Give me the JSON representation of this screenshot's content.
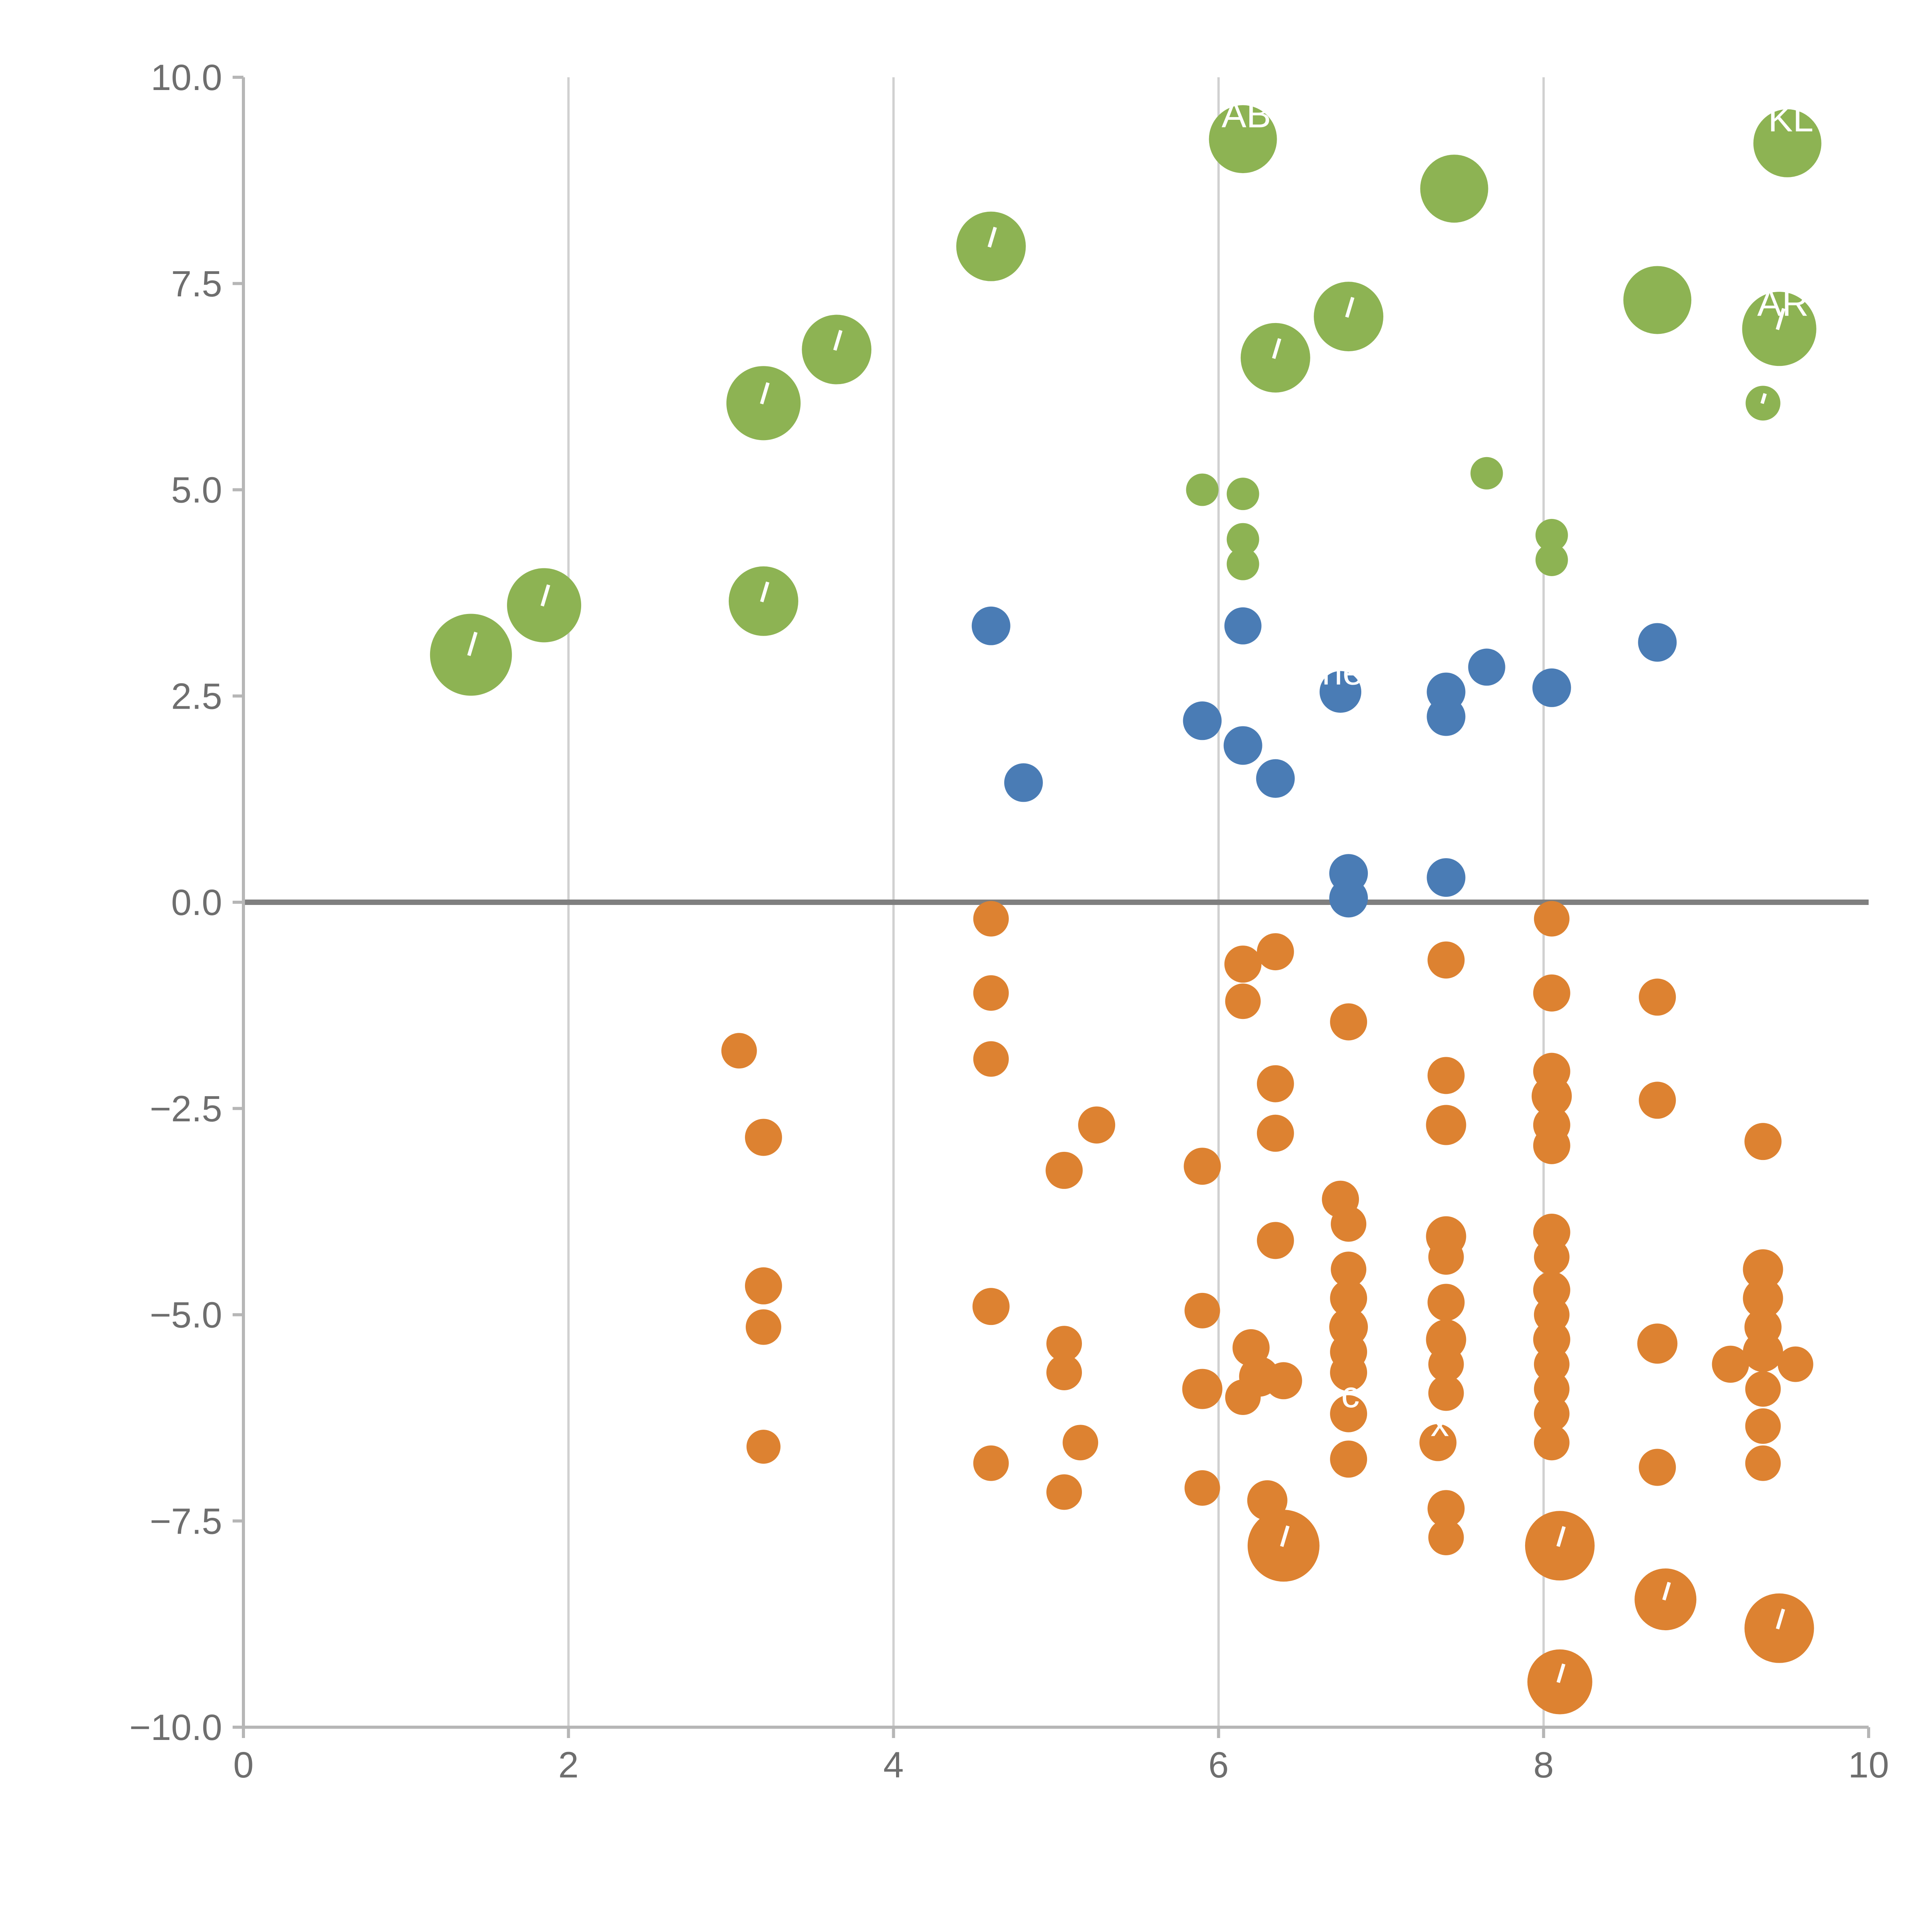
{
  "chart_data": {
    "type": "scatter",
    "title": "",
    "xlabel": "",
    "ylabel": "",
    "xlim": [
      0,
      10
    ],
    "ylim": [
      -10,
      10
    ],
    "grid": "vertical-only",
    "legend": "none",
    "gridlines_x": [
      2,
      4,
      6,
      8
    ],
    "zero_line_y": 0,
    "x_ticks": [
      {
        "v": 0,
        "label": "0"
      },
      {
        "v": 2,
        "label": "2"
      },
      {
        "v": 4,
        "label": "4"
      },
      {
        "v": 6,
        "label": "6"
      },
      {
        "v": 8,
        "label": "8"
      },
      {
        "v": 10,
        "label": "10"
      }
    ],
    "y_ticks": [
      {
        "v": -10,
        "label": "−10.0"
      },
      {
        "v": -7.5,
        "label": "−7.5"
      },
      {
        "v": -5,
        "label": "−5.0"
      },
      {
        "v": -2.5,
        "label": "−2.5"
      },
      {
        "v": 0,
        "label": "0.0"
      },
      {
        "v": 2.5,
        "label": "2.5"
      },
      {
        "v": 5,
        "label": "5.0"
      },
      {
        "v": 7.5,
        "label": "7.5"
      },
      {
        "v": 10,
        "label": "10.0"
      }
    ],
    "colors": {
      "green": "#8db353",
      "blue": "#4a7cb5",
      "orange": "#dd8231",
      "grid": "#d0d0d0",
      "axis": "#b6b6b6",
      "zero_line": "#7f7f7f",
      "tick_label": "#6e6e6e",
      "point_label": "#ffffff"
    },
    "point_format": [
      "x",
      "y",
      "radius_px",
      "label",
      "slash_mark"
    ],
    "series": [
      {
        "name": "green",
        "color_key": "green",
        "points": [
          [
            1.4,
            3.0,
            106,
            null,
            true
          ],
          [
            1.85,
            3.6,
            96,
            null,
            true
          ],
          [
            3.2,
            6.05,
            96,
            null,
            true
          ],
          [
            3.65,
            6.7,
            90,
            null,
            true
          ],
          [
            4.6,
            7.95,
            90,
            null,
            true
          ],
          [
            3.2,
            3.65,
            90,
            null,
            true
          ],
          [
            6.35,
            6.6,
            90,
            null,
            true
          ],
          [
            6.8,
            7.1,
            90,
            null,
            true
          ],
          [
            7.45,
            8.65,
            88,
            null,
            false
          ],
          [
            6.15,
            9.25,
            88,
            "AB",
            false
          ],
          [
            8.7,
            7.3,
            88,
            null,
            false
          ],
          [
            9.5,
            9.2,
            88,
            "KL",
            false
          ],
          [
            9.45,
            6.95,
            96,
            "AR",
            true
          ],
          [
            9.35,
            6.05,
            45,
            null,
            true
          ],
          [
            7.65,
            5.2,
            42,
            null,
            false
          ],
          [
            5.9,
            5.0,
            42,
            null,
            false
          ],
          [
            6.15,
            4.95,
            42,
            null,
            false
          ],
          [
            6.15,
            4.4,
            42,
            null,
            false
          ],
          [
            6.15,
            4.1,
            42,
            null,
            false
          ],
          [
            8.05,
            4.45,
            42,
            null,
            false
          ],
          [
            8.05,
            4.15,
            42,
            null,
            false
          ]
        ]
      },
      {
        "name": "blue",
        "color_key": "blue",
        "points": [
          [
            4.6,
            3.35,
            50,
            null,
            false
          ],
          [
            4.8,
            1.45,
            50,
            null,
            false
          ],
          [
            5.9,
            2.2,
            50,
            null,
            false
          ],
          [
            6.15,
            1.9,
            50,
            null,
            false
          ],
          [
            6.15,
            3.35,
            48,
            null,
            false
          ],
          [
            6.35,
            1.5,
            50,
            null,
            false
          ],
          [
            6.75,
            2.55,
            54,
            "ne",
            false
          ],
          [
            6.8,
            0.35,
            50,
            null,
            false
          ],
          [
            6.8,
            0.05,
            50,
            null,
            false
          ],
          [
            7.4,
            2.55,
            50,
            null,
            false
          ],
          [
            7.4,
            2.25,
            50,
            null,
            false
          ],
          [
            7.65,
            2.85,
            48,
            null,
            false
          ],
          [
            7.4,
            0.3,
            50,
            null,
            false
          ],
          [
            8.05,
            2.6,
            50,
            null,
            false
          ],
          [
            8.7,
            3.15,
            50,
            null,
            false
          ]
        ]
      },
      {
        "name": "orange",
        "color_key": "orange",
        "points": [
          [
            3.05,
            -1.8,
            46,
            null,
            false
          ],
          [
            3.2,
            -2.85,
            48,
            null,
            false
          ],
          [
            3.2,
            -4.65,
            48,
            null,
            false
          ],
          [
            3.2,
            -5.15,
            46,
            null,
            false
          ],
          [
            3.2,
            -6.6,
            44,
            null,
            false
          ],
          [
            4.6,
            -0.2,
            46,
            null,
            false
          ],
          [
            4.6,
            -1.1,
            46,
            null,
            false
          ],
          [
            4.6,
            -1.9,
            46,
            null,
            false
          ],
          [
            4.6,
            -4.9,
            48,
            null,
            false
          ],
          [
            4.6,
            -6.8,
            46,
            null,
            false
          ],
          [
            5.05,
            -3.25,
            48,
            null,
            false
          ],
          [
            5.25,
            -2.7,
            48,
            null,
            false
          ],
          [
            5.05,
            -5.35,
            46,
            null,
            false
          ],
          [
            5.05,
            -5.7,
            46,
            null,
            false
          ],
          [
            5.15,
            -6.55,
            46,
            null,
            false
          ],
          [
            5.05,
            -7.15,
            46,
            null,
            false
          ],
          [
            5.9,
            -3.2,
            48,
            null,
            false
          ],
          [
            5.9,
            -4.95,
            46,
            null,
            false
          ],
          [
            5.9,
            -5.9,
            52,
            null,
            false
          ],
          [
            5.9,
            -7.1,
            46,
            null,
            false
          ],
          [
            6.15,
            -0.75,
            48,
            null,
            false
          ],
          [
            6.15,
            -1.2,
            46,
            null,
            false
          ],
          [
            6.35,
            -0.6,
            48,
            null,
            false
          ],
          [
            6.35,
            -2.2,
            48,
            null,
            false
          ],
          [
            6.35,
            -2.8,
            48,
            null,
            false
          ],
          [
            6.35,
            -4.1,
            48,
            null,
            false
          ],
          [
            6.2,
            -5.4,
            48,
            null,
            false
          ],
          [
            6.25,
            -5.75,
            52,
            null,
            false
          ],
          [
            6.4,
            -5.8,
            48,
            null,
            false
          ],
          [
            6.15,
            -6.0,
            46,
            null,
            false
          ],
          [
            6.3,
            -7.25,
            52,
            null,
            false
          ],
          [
            6.4,
            -7.8,
            93,
            null,
            true
          ],
          [
            6.8,
            -1.45,
            48,
            null,
            false
          ],
          [
            6.75,
            -3.6,
            48,
            null,
            false
          ],
          [
            6.8,
            -3.9,
            46,
            null,
            false
          ],
          [
            6.8,
            -4.45,
            46,
            null,
            false
          ],
          [
            6.8,
            -4.8,
            48,
            null,
            false
          ],
          [
            6.8,
            -5.15,
            50,
            null,
            false
          ],
          [
            6.8,
            -5.45,
            48,
            null,
            false
          ],
          [
            6.8,
            -5.7,
            48,
            null,
            false
          ],
          [
            6.8,
            -6.2,
            48,
            "c",
            false
          ],
          [
            6.8,
            -6.75,
            48,
            null,
            false
          ],
          [
            7.4,
            -0.7,
            48,
            null,
            false
          ],
          [
            7.4,
            -2.1,
            48,
            null,
            false
          ],
          [
            7.4,
            -2.7,
            52,
            null,
            false
          ],
          [
            7.4,
            -4.05,
            52,
            null,
            false
          ],
          [
            7.4,
            -4.3,
            46,
            null,
            false
          ],
          [
            7.4,
            -4.85,
            48,
            null,
            false
          ],
          [
            7.4,
            -5.3,
            52,
            null,
            false
          ],
          [
            7.4,
            -5.6,
            46,
            null,
            false
          ],
          [
            7.4,
            -5.95,
            46,
            null,
            false
          ],
          [
            7.35,
            -6.55,
            48,
            "x",
            false
          ],
          [
            7.4,
            -7.35,
            48,
            null,
            false
          ],
          [
            7.4,
            -7.7,
            46,
            null,
            false
          ],
          [
            8.05,
            -0.2,
            46,
            null,
            false
          ],
          [
            8.05,
            -1.1,
            48,
            null,
            false
          ],
          [
            8.05,
            -2.05,
            48,
            null,
            false
          ],
          [
            8.05,
            -2.35,
            52,
            null,
            false
          ],
          [
            8.05,
            -2.7,
            48,
            null,
            false
          ],
          [
            8.05,
            -2.95,
            48,
            null,
            false
          ],
          [
            8.05,
            -4.0,
            48,
            null,
            false
          ],
          [
            8.05,
            -4.3,
            46,
            null,
            false
          ],
          [
            8.05,
            -4.7,
            48,
            null,
            false
          ],
          [
            8.05,
            -5.0,
            46,
            null,
            false
          ],
          [
            8.05,
            -5.3,
            48,
            null,
            false
          ],
          [
            8.05,
            -5.6,
            46,
            null,
            false
          ],
          [
            8.05,
            -5.9,
            46,
            null,
            false
          ],
          [
            8.05,
            -6.2,
            46,
            null,
            false
          ],
          [
            8.05,
            -6.55,
            46,
            null,
            false
          ],
          [
            8.1,
            -7.8,
            90,
            null,
            true
          ],
          [
            8.1,
            -9.45,
            84,
            null,
            true
          ],
          [
            8.7,
            -1.15,
            48,
            null,
            false
          ],
          [
            8.7,
            -2.4,
            48,
            null,
            false
          ],
          [
            8.7,
            -5.35,
            52,
            null,
            false
          ],
          [
            8.7,
            -6.85,
            48,
            null,
            false
          ],
          [
            8.75,
            -8.45,
            80,
            null,
            true
          ],
          [
            9.35,
            -2.9,
            48,
            null,
            false
          ],
          [
            9.35,
            -4.45,
            52,
            null,
            false
          ],
          [
            9.35,
            -4.8,
            52,
            null,
            false
          ],
          [
            9.35,
            -5.15,
            48,
            null,
            false
          ],
          [
            9.15,
            -5.6,
            48,
            null,
            false
          ],
          [
            9.35,
            -5.45,
            52,
            null,
            false
          ],
          [
            9.55,
            -5.6,
            46,
            null,
            false
          ],
          [
            9.35,
            -5.9,
            46,
            null,
            false
          ],
          [
            9.35,
            -6.35,
            46,
            null,
            false
          ],
          [
            9.35,
            -6.8,
            46,
            null,
            false
          ],
          [
            9.45,
            -8.8,
            90,
            null,
            true
          ]
        ]
      }
    ]
  }
}
